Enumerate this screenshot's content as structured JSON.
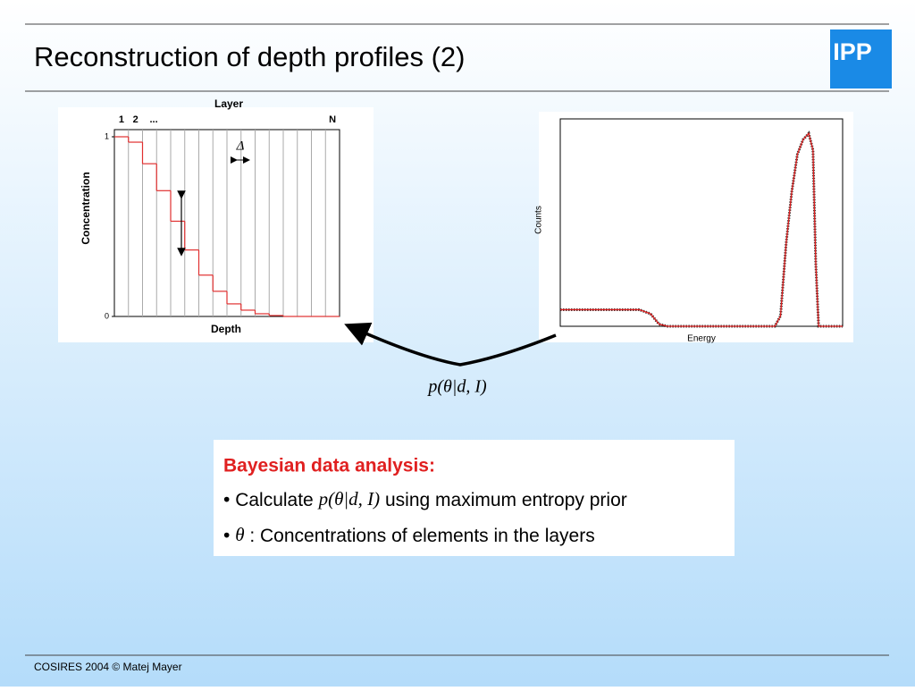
{
  "header": {
    "title": "Reconstruction of depth profiles (2)",
    "logo": "IPP"
  },
  "chart_data": [
    {
      "type": "step",
      "title": "Layer",
      "layer_labels": [
        "1",
        "2",
        "...",
        "N"
      ],
      "xlabel": "Depth",
      "ylabel": "Concentration",
      "annotation": "Δ",
      "color": "#e03030",
      "values": [
        1.0,
        0.97,
        0.85,
        0.7,
        0.53,
        0.37,
        0.23,
        0.14,
        0.07,
        0.035,
        0.015,
        0.005,
        0,
        0,
        0,
        0
      ],
      "ylim": [
        0,
        1
      ],
      "yticks": [
        0,
        1
      ]
    },
    {
      "type": "line",
      "xlabel": "Energy",
      "ylabel": "Counts",
      "color": "#e02020",
      "x": [
        0,
        28,
        32,
        35,
        38,
        76,
        78,
        80,
        82,
        84,
        86,
        88,
        89.5,
        90.5,
        91.5,
        100
      ],
      "values": [
        8,
        8,
        6,
        1,
        0,
        0,
        5,
        40,
        65,
        83,
        90,
        93,
        85,
        30,
        0,
        0
      ],
      "xlim": [
        0,
        100
      ],
      "ylim": [
        0,
        100
      ]
    }
  ],
  "arrow_label": "p(θ|d, I)",
  "box": {
    "heading": "Bayesian data analysis:",
    "bullets": [
      [
        "Calculate ",
        "p(θ|d, I)",
        " using maximum entropy prior"
      ],
      [
        "θ",
        " : Concentrations of elements in the layers"
      ]
    ]
  },
  "footer": "COSIRES 2004 © Matej Mayer"
}
